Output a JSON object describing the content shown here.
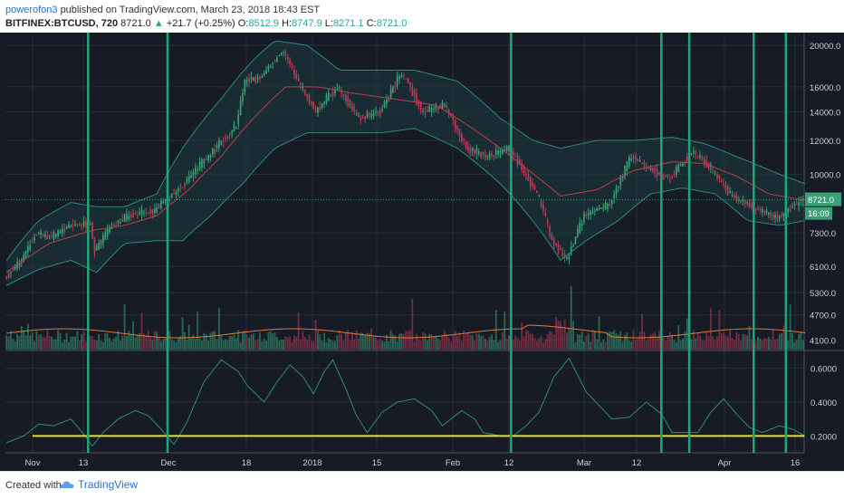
{
  "header": {
    "author": "powerofon3",
    "published_text": "published on TradingView.com, March 23, 2018 18:43 EST",
    "symbol": "BITFINEX:BTCUSD, 720",
    "last": "8721.0",
    "change": "+21.7 (+0.25%)",
    "open_label": "O:",
    "open_value": "8512.9",
    "high_label": "H:",
    "high_value": "8747.9",
    "low_label": "L:",
    "low_value": "8271.1",
    "close_label": "C:",
    "close_value": "8721.0"
  },
  "footer": {
    "created_with": "Created with",
    "brand": "TradingView",
    "logo_icon": "tradingview-cloud-icon"
  },
  "colors": {
    "background": "#161b26",
    "up": "#3aa177",
    "down": "#b93b55",
    "band": "#2e8a78",
    "ma": "#b8404a",
    "vline": "#1fa77a",
    "yellow": "#e8e21a",
    "volume_ma": "#e07a3a"
  },
  "chart_data": {
    "type": "candlestick",
    "price_scale": "log",
    "price_axis_ticks": [
      "20000.0",
      "16000.0",
      "14000.0",
      "12000.0",
      "10000.0",
      "7300.0",
      "6100.0",
      "5300.0",
      "4700.0",
      "4100.0"
    ],
    "last_price_label": "8721.0",
    "countdown_label": "16:09",
    "time_axis_labels": [
      "Nov",
      "13",
      "Dec",
      "18",
      "2018",
      "15",
      "Feb",
      "12",
      "Mar",
      "12",
      "Apr",
      "16"
    ],
    "price_path": [
      [
        0,
        5750
      ],
      [
        8,
        6300
      ],
      [
        15,
        7300
      ],
      [
        22,
        7100
      ],
      [
        30,
        7600
      ],
      [
        40,
        7700
      ],
      [
        42,
        6600
      ],
      [
        50,
        7600
      ],
      [
        58,
        8000
      ],
      [
        70,
        8250
      ],
      [
        82,
        9300
      ],
      [
        95,
        11000
      ],
      [
        108,
        13000
      ],
      [
        112,
        16500
      ],
      [
        120,
        17000
      ],
      [
        130,
        19500
      ],
      [
        135,
        17000
      ],
      [
        145,
        14000
      ],
      [
        155,
        16000
      ],
      [
        165,
        13500
      ],
      [
        175,
        14000
      ],
      [
        185,
        17200
      ],
      [
        195,
        14000
      ],
      [
        205,
        14500
      ],
      [
        215,
        11500
      ],
      [
        225,
        11000
      ],
      [
        235,
        11500
      ],
      [
        248,
        9000
      ],
      [
        255,
        7000
      ],
      [
        262,
        6300
      ],
      [
        270,
        8000
      ],
      [
        282,
        8500
      ],
      [
        292,
        11000
      ],
      [
        302,
        10200
      ],
      [
        310,
        9800
      ],
      [
        320,
        11300
      ],
      [
        328,
        10500
      ],
      [
        338,
        9000
      ],
      [
        350,
        8300
      ],
      [
        360,
        7900
      ],
      [
        372,
        8721
      ]
    ],
    "upper_band_path": [
      [
        0,
        6300
      ],
      [
        15,
        7800
      ],
      [
        30,
        8600
      ],
      [
        42,
        8400
      ],
      [
        55,
        8400
      ],
      [
        70,
        9000
      ],
      [
        82,
        11500
      ],
      [
        100,
        15000
      ],
      [
        115,
        18500
      ],
      [
        125,
        20500
      ],
      [
        140,
        20000
      ],
      [
        155,
        17500
      ],
      [
        175,
        17500
      ],
      [
        190,
        17500
      ],
      [
        210,
        16500
      ],
      [
        230,
        13500
      ],
      [
        245,
        12000
      ],
      [
        258,
        11500
      ],
      [
        275,
        12000
      ],
      [
        292,
        12000
      ],
      [
        310,
        12200
      ],
      [
        325,
        11800
      ],
      [
        340,
        11000
      ],
      [
        360,
        10000
      ],
      [
        372,
        9500
      ]
    ],
    "lower_band_path": [
      [
        0,
        5500
      ],
      [
        15,
        6000
      ],
      [
        30,
        6300
      ],
      [
        42,
        5900
      ],
      [
        55,
        6900
      ],
      [
        70,
        7000
      ],
      [
        82,
        7000
      ],
      [
        95,
        8000
      ],
      [
        110,
        9500
      ],
      [
        125,
        11500
      ],
      [
        140,
        12500
      ],
      [
        155,
        12500
      ],
      [
        175,
        12500
      ],
      [
        190,
        12800
      ],
      [
        210,
        11500
      ],
      [
        230,
        9500
      ],
      [
        245,
        7800
      ],
      [
        258,
        6300
      ],
      [
        270,
        7000
      ],
      [
        285,
        7800
      ],
      [
        300,
        9000
      ],
      [
        315,
        9300
      ],
      [
        330,
        9000
      ],
      [
        345,
        7800
      ],
      [
        360,
        7600
      ],
      [
        372,
        7800
      ]
    ],
    "middle_band_path": [
      [
        0,
        5900
      ],
      [
        20,
        6900
      ],
      [
        40,
        7400
      ],
      [
        55,
        7600
      ],
      [
        70,
        8000
      ],
      [
        85,
        9200
      ],
      [
        100,
        11000
      ],
      [
        115,
        13500
      ],
      [
        130,
        16000
      ],
      [
        145,
        16000
      ],
      [
        160,
        15500
      ],
      [
        180,
        15000
      ],
      [
        200,
        14500
      ],
      [
        220,
        12500
      ],
      [
        240,
        10500
      ],
      [
        258,
        8900
      ],
      [
        275,
        9200
      ],
      [
        292,
        10200
      ],
      [
        310,
        10700
      ],
      [
        325,
        10600
      ],
      [
        340,
        9900
      ],
      [
        355,
        9000
      ],
      [
        372,
        8700
      ]
    ],
    "oscillator": {
      "axis_ticks": [
        "0.6000",
        "0.4000",
        "0.2000"
      ],
      "reference_level": 0.2,
      "path": [
        [
          0,
          0.16
        ],
        [
          8,
          0.2
        ],
        [
          15,
          0.27
        ],
        [
          22,
          0.26
        ],
        [
          30,
          0.3
        ],
        [
          36,
          0.21
        ],
        [
          40,
          0.14
        ],
        [
          45,
          0.22
        ],
        [
          52,
          0.3
        ],
        [
          60,
          0.35
        ],
        [
          66,
          0.32
        ],
        [
          72,
          0.24
        ],
        [
          78,
          0.15
        ],
        [
          84,
          0.28
        ],
        [
          92,
          0.52
        ],
        [
          100,
          0.65
        ],
        [
          108,
          0.58
        ],
        [
          112,
          0.5
        ],
        [
          120,
          0.4
        ],
        [
          126,
          0.52
        ],
        [
          132,
          0.62
        ],
        [
          138,
          0.55
        ],
        [
          143,
          0.45
        ],
        [
          148,
          0.58
        ],
        [
          152,
          0.65
        ],
        [
          158,
          0.48
        ],
        [
          163,
          0.32
        ],
        [
          168,
          0.22
        ],
        [
          175,
          0.34
        ],
        [
          182,
          0.4
        ],
        [
          190,
          0.42
        ],
        [
          198,
          0.35
        ],
        [
          203,
          0.26
        ],
        [
          212,
          0.35
        ],
        [
          218,
          0.3
        ],
        [
          222,
          0.22
        ],
        [
          230,
          0.2
        ],
        [
          236,
          0.2
        ],
        [
          242,
          0.26
        ],
        [
          248,
          0.34
        ],
        [
          255,
          0.55
        ],
        [
          262,
          0.66
        ],
        [
          270,
          0.46
        ],
        [
          276,
          0.38
        ],
        [
          282,
          0.3
        ],
        [
          290,
          0.31
        ],
        [
          298,
          0.4
        ],
        [
          305,
          0.33
        ],
        [
          310,
          0.22
        ],
        [
          316,
          0.22
        ],
        [
          322,
          0.22
        ],
        [
          328,
          0.34
        ],
        [
          334,
          0.42
        ],
        [
          340,
          0.33
        ],
        [
          346,
          0.25
        ],
        [
          352,
          0.22
        ],
        [
          360,
          0.26
        ],
        [
          366,
          0.24
        ],
        [
          372,
          0.2
        ]
      ]
    },
    "signal_lines_at_bar": [
      38,
      75,
      235,
      305,
      318,
      348,
      363
    ]
  }
}
